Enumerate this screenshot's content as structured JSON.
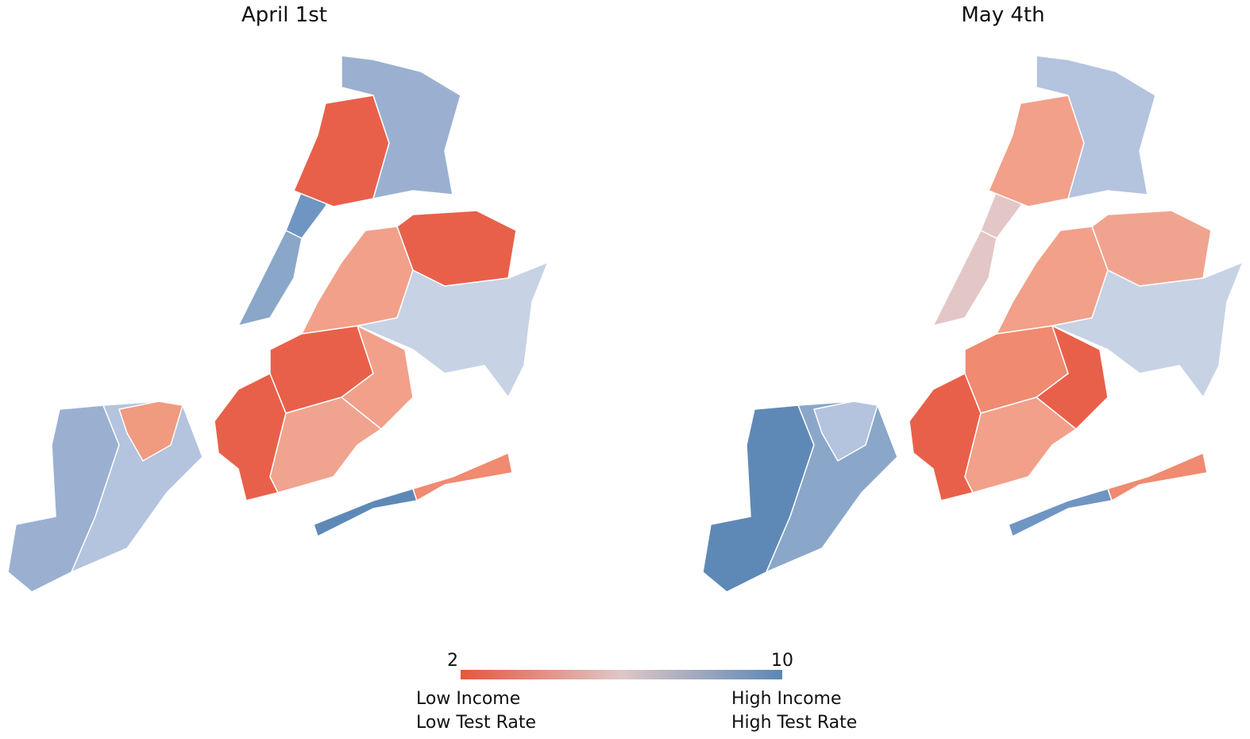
{
  "maps": [
    {
      "title": "April 1st"
    },
    {
      "title": "May 4th"
    }
  ],
  "legend": {
    "min": 2,
    "max": 10,
    "low_labels": [
      "Low Income",
      "Low Test Rate"
    ],
    "high_labels": [
      "High Income",
      "High Test Rate"
    ]
  }
}
